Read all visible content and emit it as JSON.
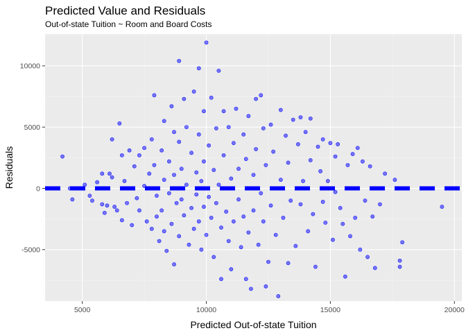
{
  "chart_data": {
    "type": "scatter",
    "title": "Predicted Value and Residuals",
    "subtitle": "Out-of-state Tuition ~ Room and Board Costs",
    "xlabel": "Predicted Out-of-state Tuition",
    "ylabel": "Residuals",
    "xlim": [
      3500,
      20300
    ],
    "ylim": [
      -9200,
      12600
    ],
    "x_ticks": [
      5000,
      10000,
      15000,
      20000
    ],
    "x_tick_labels": [
      "5000",
      "10000",
      "15000",
      "20000"
    ],
    "y_ticks": [
      -5000,
      0,
      5000,
      10000
    ],
    "y_tick_labels": [
      "-5000",
      "0",
      "5000",
      "10000"
    ],
    "grid": true,
    "reference_line": {
      "y": 0,
      "style": "dashed",
      "color": "#0000ff"
    },
    "point_color": "#0000ff",
    "points": [
      [
        4200,
        2600
      ],
      [
        4500,
        0
      ],
      [
        4600,
        -900
      ],
      [
        5100,
        300
      ],
      [
        5300,
        -600
      ],
      [
        5400,
        -1000
      ],
      [
        5600,
        500
      ],
      [
        5800,
        1200
      ],
      [
        5800,
        -1300
      ],
      [
        5900,
        -2000
      ],
      [
        6000,
        -1400
      ],
      [
        6100,
        1200
      ],
      [
        6200,
        900
      ],
      [
        6200,
        4000
      ],
      [
        6300,
        -1500
      ],
      [
        6400,
        -1800
      ],
      [
        6500,
        5300
      ],
      [
        6600,
        2700
      ],
      [
        6600,
        -2600
      ],
      [
        6700,
        600
      ],
      [
        6800,
        -1200
      ],
      [
        6900,
        3100
      ],
      [
        7000,
        -3000
      ],
      [
        7100,
        1800
      ],
      [
        7200,
        -800
      ],
      [
        7300,
        2700
      ],
      [
        7300,
        -1800
      ],
      [
        7500,
        3300
      ],
      [
        7500,
        200
      ],
      [
        7600,
        -2700
      ],
      [
        7700,
        1200
      ],
      [
        7800,
        4000
      ],
      [
        7800,
        -3300
      ],
      [
        7900,
        7600
      ],
      [
        7900,
        1900
      ],
      [
        8000,
        -600
      ],
      [
        8000,
        -2300
      ],
      [
        8100,
        -4300
      ],
      [
        8200,
        3100
      ],
      [
        8200,
        -1800
      ],
      [
        8300,
        5500
      ],
      [
        8300,
        700
      ],
      [
        8300,
        -3500
      ],
      [
        8400,
        -5100
      ],
      [
        8500,
        2200
      ],
      [
        8500,
        -400
      ],
      [
        8600,
        6700
      ],
      [
        8600,
        -2900
      ],
      [
        8700,
        4600
      ],
      [
        8700,
        1100
      ],
      [
        8700,
        -6200
      ],
      [
        8800,
        -1200
      ],
      [
        8900,
        10400
      ],
      [
        8900,
        3800
      ],
      [
        8900,
        -3900
      ],
      [
        9000,
        1600
      ],
      [
        9000,
        -900
      ],
      [
        9100,
        7300
      ],
      [
        9100,
        -2200
      ],
      [
        9200,
        5000
      ],
      [
        9200,
        300
      ],
      [
        9300,
        -4600
      ],
      [
        9400,
        2900
      ],
      [
        9400,
        -1600
      ],
      [
        9500,
        7900
      ],
      [
        9500,
        -3300
      ],
      [
        9600,
        1300
      ],
      [
        9600,
        -500
      ],
      [
        9700,
        9800
      ],
      [
        9700,
        4400
      ],
      [
        9700,
        -2700
      ],
      [
        9800,
        600
      ],
      [
        9800,
        -5000
      ],
      [
        9900,
        6300
      ],
      [
        9900,
        2200
      ],
      [
        9900,
        -1500
      ],
      [
        10000,
        11900
      ],
      [
        10000,
        -3800
      ],
      [
        10100,
        3500
      ],
      [
        10100,
        -700
      ],
      [
        10200,
        7400
      ],
      [
        10200,
        -2400
      ],
      [
        10300,
        1500
      ],
      [
        10300,
        -5600
      ],
      [
        10400,
        4900
      ],
      [
        10400,
        -1200
      ],
      [
        10500,
        9600
      ],
      [
        10500,
        300
      ],
      [
        10600,
        -3200
      ],
      [
        10600,
        -7400
      ],
      [
        10700,
        2700
      ],
      [
        10700,
        6300
      ],
      [
        10800,
        -1900
      ],
      [
        10900,
        5000
      ],
      [
        10900,
        -4300
      ],
      [
        11000,
        800
      ],
      [
        11000,
        -6600
      ],
      [
        11100,
        3700
      ],
      [
        11100,
        -2700
      ],
      [
        11200,
        6500
      ],
      [
        11300,
        1600
      ],
      [
        11300,
        -900
      ],
      [
        11400,
        -4800
      ],
      [
        11500,
        4400
      ],
      [
        11500,
        -2300
      ],
      [
        11600,
        2400
      ],
      [
        11600,
        -7400
      ],
      [
        11700,
        5900
      ],
      [
        11700,
        -3600
      ],
      [
        11800,
        -8200
      ],
      [
        11900,
        1100
      ],
      [
        11900,
        -1800
      ],
      [
        12000,
        7300
      ],
      [
        12000,
        3200
      ],
      [
        12100,
        -4600
      ],
      [
        12200,
        7600
      ],
      [
        12200,
        -400
      ],
      [
        12300,
        4900
      ],
      [
        12300,
        -2700
      ],
      [
        12400,
        1900
      ],
      [
        12400,
        -8000
      ],
      [
        12500,
        -6000
      ],
      [
        12600,
        5200
      ],
      [
        12600,
        -1400
      ],
      [
        12700,
        3000
      ],
      [
        12800,
        -3800
      ],
      [
        12900,
        -8800
      ],
      [
        13000,
        6400
      ],
      [
        13000,
        700
      ],
      [
        13100,
        -2400
      ],
      [
        13200,
        4300
      ],
      [
        13300,
        2100
      ],
      [
        13300,
        -6100
      ],
      [
        13400,
        -1000
      ],
      [
        13500,
        5600
      ],
      [
        13600,
        -4700
      ],
      [
        13700,
        3600
      ],
      [
        13800,
        5800
      ],
      [
        13800,
        -1300
      ],
      [
        13900,
        600
      ],
      [
        14000,
        4600
      ],
      [
        14100,
        -3500
      ],
      [
        14200,
        5700
      ],
      [
        14200,
        2300
      ],
      [
        14300,
        -2100
      ],
      [
        14400,
        -6400
      ],
      [
        14500,
        3400
      ],
      [
        14600,
        1400
      ],
      [
        14700,
        4000
      ],
      [
        14700,
        -1100
      ],
      [
        14800,
        -2800
      ],
      [
        14900,
        600
      ],
      [
        15000,
        3700
      ],
      [
        15100,
        -4200
      ],
      [
        15200,
        2600
      ],
      [
        15200,
        -300
      ],
      [
        15300,
        3600
      ],
      [
        15400,
        -1600
      ],
      [
        15500,
        -2900
      ],
      [
        15600,
        -7200
      ],
      [
        15700,
        1900
      ],
      [
        15800,
        -3900
      ],
      [
        15900,
        2800
      ],
      [
        16000,
        -2400
      ],
      [
        16100,
        3300
      ],
      [
        16200,
        -5000
      ],
      [
        16300,
        2200
      ],
      [
        16400,
        -1000
      ],
      [
        16500,
        -5600
      ],
      [
        16600,
        1800
      ],
      [
        16700,
        -2300
      ],
      [
        16800,
        -6500
      ],
      [
        17000,
        -1300
      ],
      [
        17200,
        1200
      ],
      [
        17600,
        700
      ],
      [
        17800,
        -5900
      ],
      [
        17800,
        -6400
      ],
      [
        17900,
        -4400
      ],
      [
        19500,
        -1500
      ]
    ]
  }
}
